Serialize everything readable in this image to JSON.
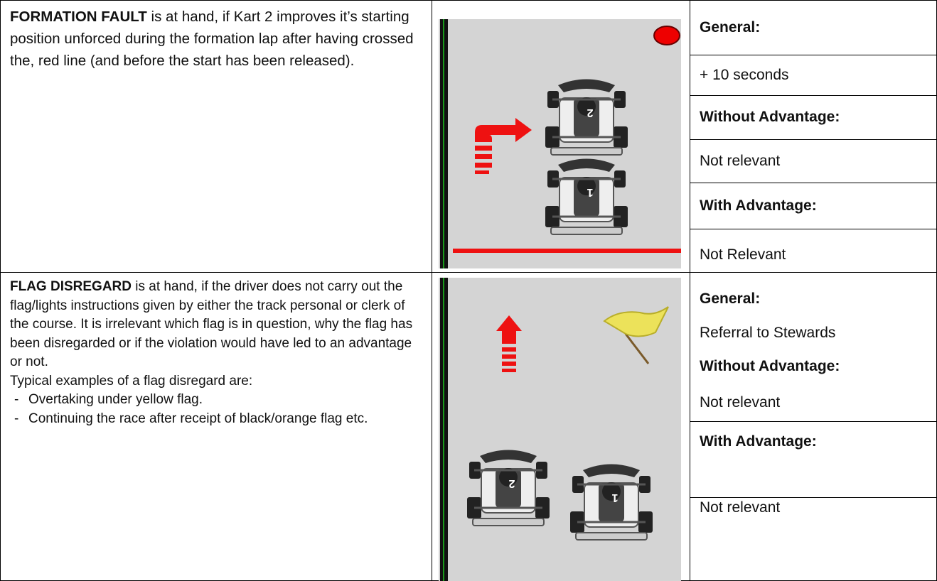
{
  "rows": [
    {
      "description": {
        "term": "FORMATION FAULT",
        "text": "is at hand, if Kart 2 improves it’s starting position unforced during the formation lap after having crossed the, red line (and before the start has been released)."
      },
      "illustration": {
        "karts": [
          "2",
          "1"
        ]
      },
      "penalties": [
        "General:",
        "+ 10 seconds",
        "Without Advantage:",
        "Not relevant",
        "With Advantage:",
        "Not Relevant"
      ]
    },
    {
      "description": {
        "term": "FLAG DISREGARD",
        "text": "is at hand, if the driver does not carry out the flag/lights instructions given by either the track personal or clerk of the course. It is irrelevant which flag is in question, why the flag has been disregarded or if the violation would have led to an advantage or not.",
        "examples_intro": "Typical examples of a flag disregard are:",
        "examples": [
          "Overtaking under yellow flag.",
          "Continuing the race after receipt of black/orange flag etc."
        ]
      },
      "illustration": {
        "karts": [
          "2",
          "1"
        ]
      },
      "penalties": [
        "General:",
        "Referral to Stewards",
        "Without Advantage:",
        "Not relevant",
        "With Advantage:",
        "Not relevant"
      ]
    }
  ]
}
